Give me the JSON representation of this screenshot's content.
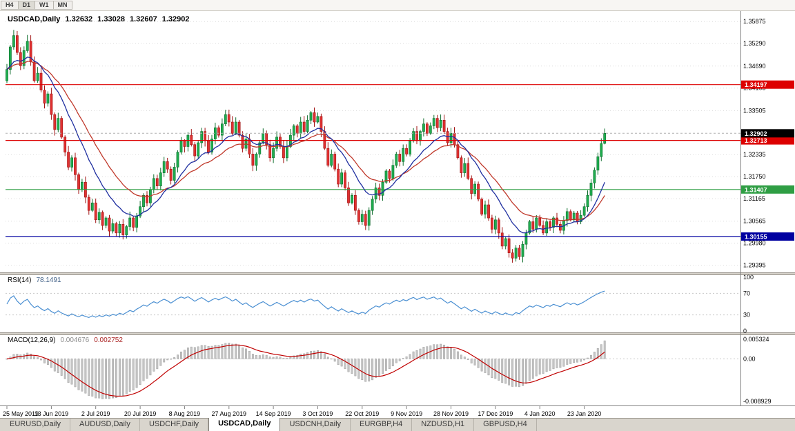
{
  "toolbar": {
    "timeframes": [
      {
        "label": "H4",
        "active": false
      },
      {
        "label": "D1",
        "active": true
      },
      {
        "label": "W1",
        "active": false
      },
      {
        "label": "MN",
        "active": false
      }
    ]
  },
  "price_panel": {
    "title_symbol": "USDCAD,Daily",
    "ohlc": {
      "open": "1.32632",
      "high": "1.33028",
      "low": "1.32607",
      "close": "1.32902"
    },
    "y_ticks": [
      "1.35875",
      "1.35290",
      "1.34690",
      "1.34105",
      "1.33505",
      "1.32335",
      "1.31750",
      "1.31165",
      "1.30565",
      "1.29980",
      "1.29395"
    ],
    "levels": [
      {
        "value": 1.34197,
        "label": "1.34197",
        "color": "#dd0000",
        "name": "resistance-upper"
      },
      {
        "value": 1.32713,
        "label": "1.32713",
        "color": "#dd0000",
        "name": "resistance-lower"
      },
      {
        "value": 1.31407,
        "label": "1.31407",
        "color": "#2f9e44",
        "name": "support-mid"
      },
      {
        "value": 1.30155,
        "label": "1.30155",
        "color": "#0000a0",
        "name": "support-lower"
      }
    ],
    "current_price": {
      "value": 1.32902,
      "label": "1.32902",
      "bg": "#000000"
    },
    "x_ticks": [
      {
        "label": "25 May 2019",
        "bar": 0
      },
      {
        "label": "13 Jun 2019",
        "bar": 13
      },
      {
        "label": "2 Jul 2019",
        "bar": 26
      },
      {
        "label": "20 Jul 2019",
        "bar": 39
      },
      {
        "label": "8 Aug 2019",
        "bar": 52
      },
      {
        "label": "27 Aug 2019",
        "bar": 65
      },
      {
        "label": "14 Sep 2019",
        "bar": 78
      },
      {
        "label": "3 Oct 2019",
        "bar": 91
      },
      {
        "label": "22 Oct 2019",
        "bar": 104
      },
      {
        "label": "9 Nov 2019",
        "bar": 117
      },
      {
        "label": "28 Nov 2019",
        "bar": 130
      },
      {
        "label": "17 Dec 2019",
        "bar": 143
      },
      {
        "label": "4 Jan 2020",
        "bar": 156
      },
      {
        "label": "23 Jan 2020",
        "bar": 169
      }
    ],
    "first_open": 1.343,
    "closes": [
      1.346,
      1.352,
      1.355,
      1.3505,
      1.347,
      1.351,
      1.3535,
      1.348,
      1.343,
      1.345,
      1.3405,
      1.337,
      1.3395,
      1.334,
      1.33,
      1.333,
      1.328,
      1.324,
      1.32,
      1.3225,
      1.318,
      1.314,
      1.316,
      1.312,
      1.3085,
      1.3105,
      1.306,
      1.308,
      1.3045,
      1.3065,
      1.303,
      1.305,
      1.3025,
      1.3048,
      1.302,
      1.3042,
      1.3065,
      1.304,
      1.307,
      1.3095,
      1.3125,
      1.3105,
      1.314,
      1.317,
      1.315,
      1.3185,
      1.3215,
      1.3195,
      1.3165,
      1.32,
      1.324,
      1.327,
      1.3255,
      1.3285,
      1.326,
      1.323,
      1.3265,
      1.3295,
      1.327,
      1.324,
      1.3275,
      1.3305,
      1.3285,
      1.3315,
      1.334,
      1.332,
      1.329,
      1.332,
      1.3285,
      1.325,
      1.3275,
      1.3235,
      1.3205,
      1.3235,
      1.3265,
      1.329,
      1.326,
      1.3225,
      1.325,
      1.328,
      1.3255,
      1.3225,
      1.3255,
      1.3285,
      1.331,
      1.329,
      1.332,
      1.3295,
      1.3325,
      1.3345,
      1.332,
      1.3335,
      1.3295,
      1.325,
      1.3205,
      1.3235,
      1.3195,
      1.3155,
      1.3185,
      1.3145,
      1.3105,
      1.3125,
      1.3085,
      1.3055,
      1.3075,
      1.3045,
      1.3085,
      1.3115,
      1.3145,
      1.3125,
      1.316,
      1.319,
      1.317,
      1.3205,
      1.3235,
      1.3215,
      1.325,
      1.3235,
      1.327,
      1.3295,
      1.327,
      1.3295,
      1.3315,
      1.329,
      1.331,
      1.333,
      1.3305,
      1.3325,
      1.3295,
      1.3265,
      1.329,
      1.326,
      1.3225,
      1.3185,
      1.321,
      1.317,
      1.313,
      1.3155,
      1.3115,
      1.3075,
      1.31,
      1.3065,
      1.3035,
      1.306,
      1.3025,
      1.299,
      1.301,
      1.2972,
      1.2958,
      1.2985,
      1.2962,
      1.2995,
      1.3025,
      1.3055,
      1.3035,
      1.3065,
      1.3045,
      1.3025,
      1.3055,
      1.304,
      1.3065,
      1.3048,
      1.3032,
      1.3058,
      1.3082,
      1.306,
      1.3078,
      1.3055,
      1.3072,
      1.3095,
      1.3125,
      1.3158,
      1.3192,
      1.3228,
      1.3263,
      1.329
    ],
    "last_candle": {
      "o": 1.32632,
      "h": 1.33028,
      "l": 1.32607,
      "c": 1.32902
    },
    "colors": {
      "candle_up": "#1fad4f",
      "candle_up_border": "#0e6e2d",
      "candle_down": "#e03131",
      "candle_down_border": "#a11212",
      "ma_fast": "#1f2fa0",
      "ma_slow": "#c0392b",
      "grid": "#dcdcdc"
    }
  },
  "rsi_panel": {
    "label": "RSI(14)",
    "value": "78.1491",
    "levels": [
      "100",
      "70",
      "30",
      "0"
    ],
    "line_color": "#4a8fd2"
  },
  "macd_panel": {
    "label": "MACD(12,26,9)",
    "value_main": "0.004676",
    "value_signal": "0.002752",
    "scale": [
      "0.005324",
      "0.00",
      "-0.008929"
    ],
    "histogram_color": "#c6c6c6",
    "histogram_border": "#9e9e9e",
    "signal_color": "#c00000"
  },
  "tabs": [
    {
      "label": "EURUSD,Daily",
      "active": false
    },
    {
      "label": "AUDUSD,Daily",
      "active": false
    },
    {
      "label": "USDCHF,Daily",
      "active": false
    },
    {
      "label": "USDCAD,Daily",
      "active": true
    },
    {
      "label": "USDCNH,Daily",
      "active": false
    },
    {
      "label": "EURGBP,H4",
      "active": false
    },
    {
      "label": "NZDUSD,H1",
      "active": false
    },
    {
      "label": "GBPUSD,H4",
      "active": false
    }
  ]
}
